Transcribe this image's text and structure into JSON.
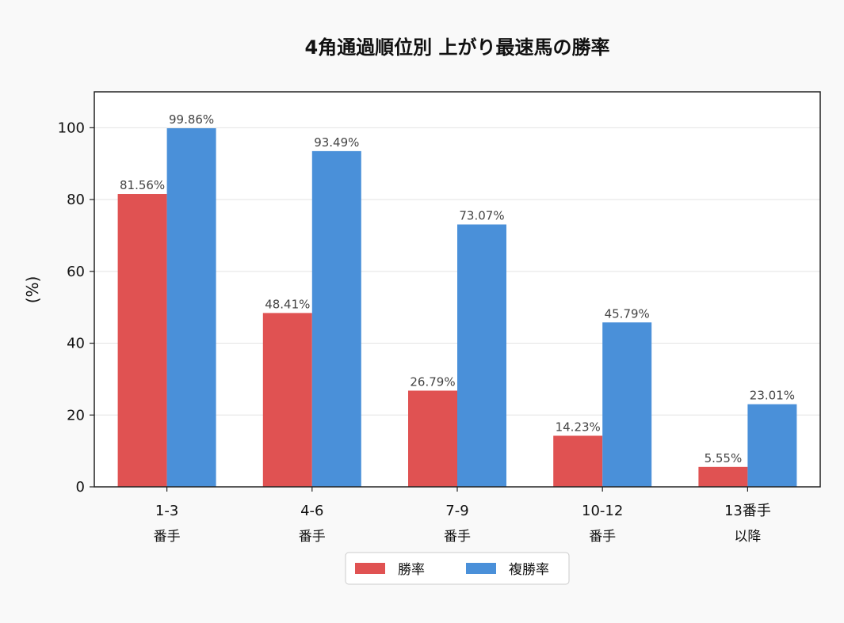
{
  "colors": {
    "background": "#f9f9f9",
    "plot_background": "#ffffff",
    "win": "#e05252",
    "place": "#4a90d9",
    "grid": "#e3e3e3",
    "axis": "#222222"
  },
  "chart_data": {
    "type": "bar",
    "title": "4角通過順位別 上がり最速馬の勝率",
    "xlabel": "",
    "ylabel": "(%)",
    "ylim": [
      0,
      110
    ],
    "yticks": [
      0,
      20,
      40,
      60,
      80,
      100
    ],
    "grid": true,
    "legend_position": "bottom-center",
    "categories": [
      {
        "line1": "1-3",
        "line2": "番手"
      },
      {
        "line1": "4-6",
        "line2": "番手"
      },
      {
        "line1": "7-9",
        "line2": "番手"
      },
      {
        "line1": "10-12",
        "line2": "番手"
      },
      {
        "line1": "13番手",
        "line2": "以降"
      }
    ],
    "series": [
      {
        "name": "勝率",
        "color": "#e05252",
        "values": [
          81.56,
          48.41,
          26.79,
          14.23,
          5.55
        ],
        "labels": [
          "81.56%",
          "48.41%",
          "26.79%",
          "14.23%",
          "5.55%"
        ]
      },
      {
        "name": "複勝率",
        "color": "#4a90d9",
        "values": [
          99.86,
          93.49,
          73.07,
          45.79,
          23.01
        ],
        "labels": [
          "99.86%",
          "93.49%",
          "73.07%",
          "45.79%",
          "23.01%"
        ]
      }
    ]
  }
}
